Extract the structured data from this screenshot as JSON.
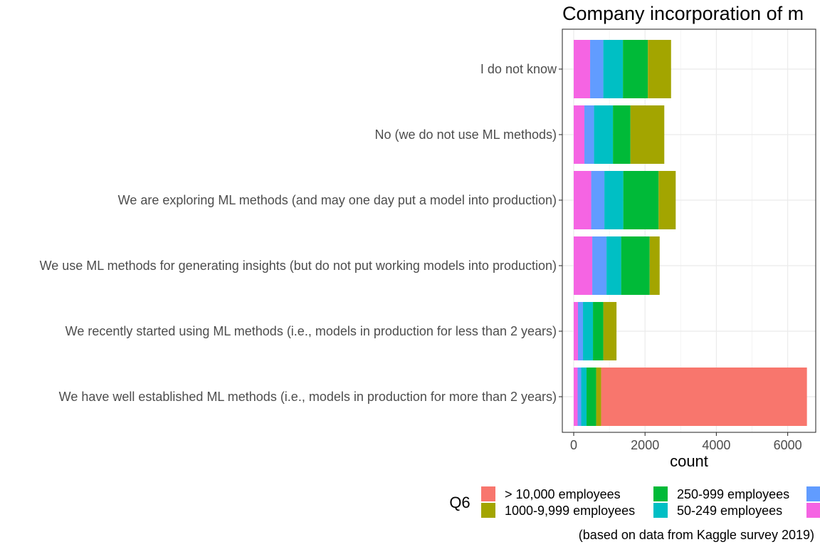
{
  "chart_data": {
    "type": "bar",
    "orientation": "horizontal",
    "stacked": true,
    "title": "Company incorporation of m",
    "xlabel": "count",
    "ylabel": "",
    "caption": "(based on data from Kaggle survey 2019)",
    "xlim": [
      0,
      6800
    ],
    "x_ticks": [
      0,
      2000,
      4000,
      6000
    ],
    "x_tick_labels": [
      "0",
      "2000",
      "4000",
      "6000"
    ],
    "grid": true,
    "legend": {
      "title": "Q6",
      "position": "bottom"
    },
    "categories": [
      "I do not know",
      "No (we do not use ML methods)",
      "We are exploring ML methods (and may one day put a model into production)",
      "We use ML methods for generating insights (but do not put working models into production)",
      "We recently started using ML methods (i.e., models in production for less than 2 years)",
      "We have well established ML methods (i.e., models in production for more than 2 years)"
    ],
    "series": [
      {
        "name": "> 10,000 employees",
        "color": "#F8766D",
        "values": [
          0,
          0,
          0,
          0,
          0,
          5770
        ]
      },
      {
        "name": "1000-9,999 employees",
        "color": "#A3A500",
        "values": [
          650,
          950,
          480,
          280,
          370,
          140
        ]
      },
      {
        "name": "250-999 employees",
        "color": "#00BA38",
        "values": [
          700,
          490,
          990,
          800,
          290,
          270
        ]
      },
      {
        "name": "50-249 employees",
        "color": "#00BFC4",
        "values": [
          550,
          530,
          530,
          410,
          280,
          150
        ]
      },
      {
        "name": "",
        "color": "#619CFF",
        "values": [
          370,
          270,
          370,
          400,
          140,
          100
        ]
      },
      {
        "name": "",
        "color": "#F564E3",
        "values": [
          460,
          300,
          490,
          520,
          120,
          110
        ]
      }
    ]
  }
}
